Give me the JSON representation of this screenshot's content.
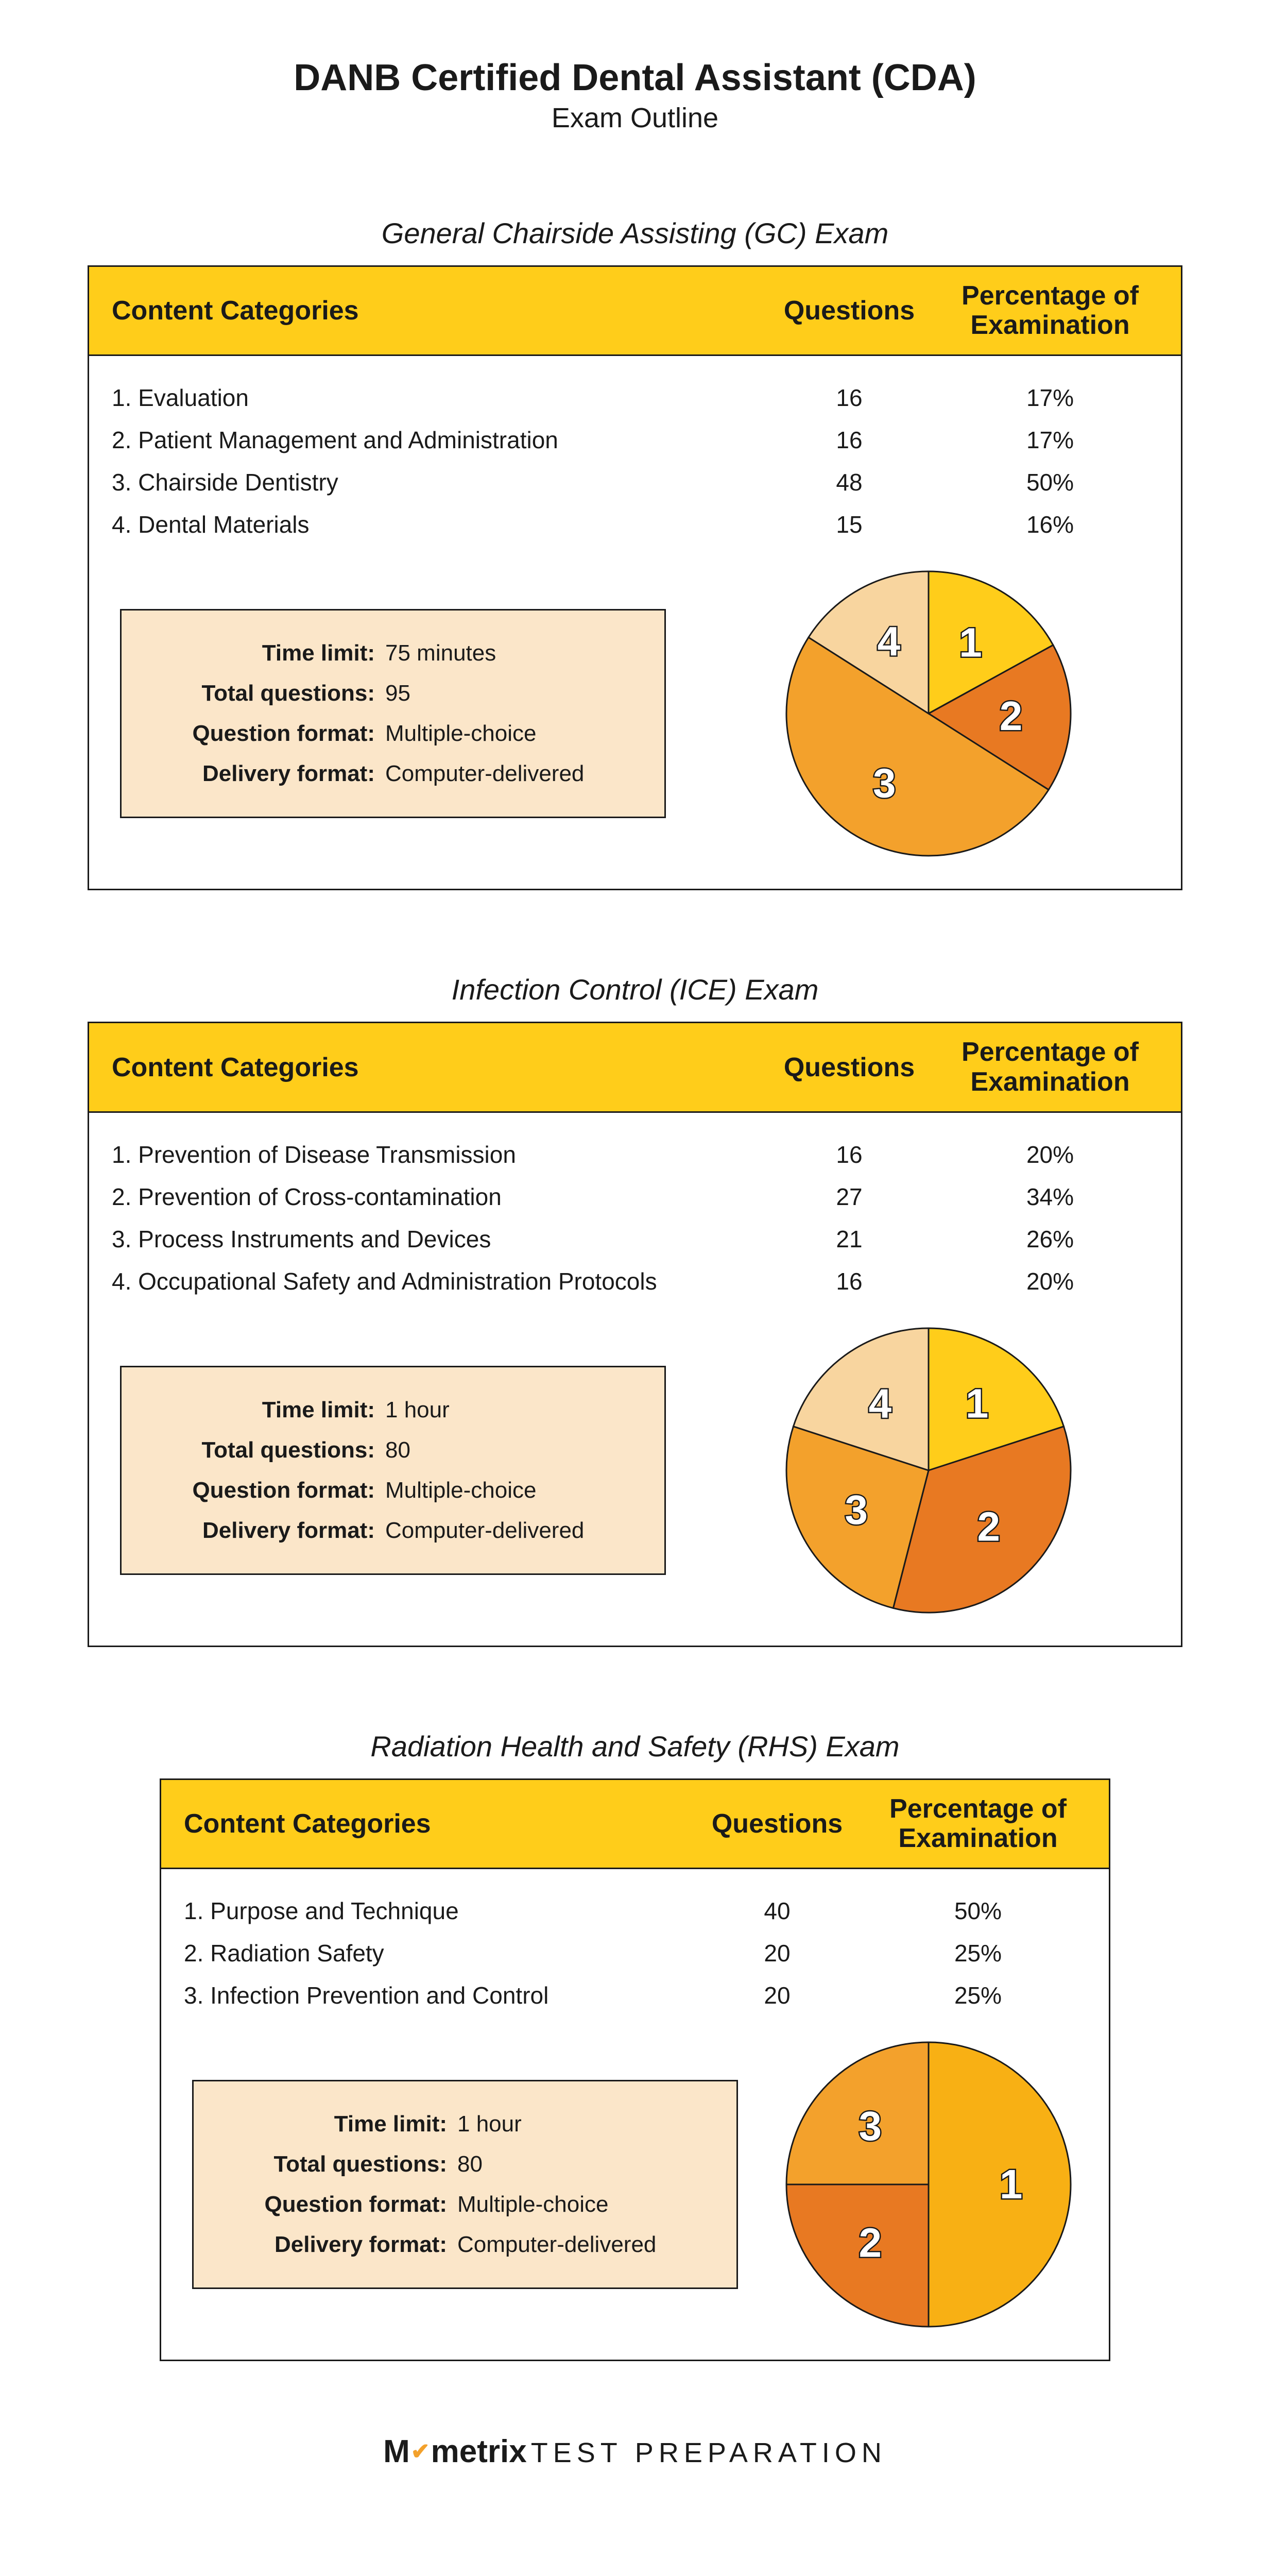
{
  "title": "DANB Certified Dental Assistant (CDA)",
  "subtitle": "Exam Outline",
  "columns": {
    "cat": "Content Categories",
    "q": "Questions",
    "pct": "Percentage of Examination"
  },
  "info_labels": {
    "time": "Time limit:",
    "total": "Total questions:",
    "qfmt": "Question format:",
    "dfmt": "Delivery format:"
  },
  "pie_stroke": "#1a1a1a",
  "header_bg": "#ffcd1a",
  "info_bg": "#fbe6c9",
  "sections": [
    {
      "title": "General Chairside Assisting (GC) Exam",
      "rows": [
        {
          "n": "1.",
          "name": "Evaluation",
          "q": "16",
          "pct": "17%"
        },
        {
          "n": "2.",
          "name": "Patient Management and Administration",
          "q": "16",
          "pct": "17%"
        },
        {
          "n": "3.",
          "name": "Chairside Dentistry",
          "q": "48",
          "pct": "50%"
        },
        {
          "n": "4.",
          "name": "Dental Materials",
          "q": "15",
          "pct": "16%"
        }
      ],
      "info": {
        "time": "75 minutes",
        "total": "95",
        "qfmt": "Multiple-choice",
        "dfmt": "Computer-delivered"
      },
      "pie": {
        "size": 560,
        "slices": [
          {
            "label": "1",
            "pct": 17,
            "color": "#ffcd1a"
          },
          {
            "label": "2",
            "pct": 17,
            "color": "#e87922"
          },
          {
            "label": "3",
            "pct": 50,
            "color": "#f3a12c"
          },
          {
            "label": "4",
            "pct": 16,
            "color": "#f8d59f"
          }
        ],
        "start_angle_deg": -90
      }
    },
    {
      "title": "Infection Control (ICE) Exam",
      "rows": [
        {
          "n": "1.",
          "name": "Prevention of Disease Transmission",
          "q": "16",
          "pct": "20%"
        },
        {
          "n": "2.",
          "name": "Prevention of Cross-contamination",
          "q": "27",
          "pct": "34%"
        },
        {
          "n": "3.",
          "name": "Process Instruments and Devices",
          "q": "21",
          "pct": "26%"
        },
        {
          "n": "4.",
          "name": "Occupational Safety and Administration Protocols",
          "q": "16",
          "pct": "20%"
        }
      ],
      "info": {
        "time": "1 hour",
        "total": "80",
        "qfmt": "Multiple-choice",
        "dfmt": "Computer-delivered"
      },
      "pie": {
        "size": 560,
        "slices": [
          {
            "label": "1",
            "pct": 20,
            "color": "#ffcd1a"
          },
          {
            "label": "2",
            "pct": 34,
            "color": "#e87922"
          },
          {
            "label": "3",
            "pct": 26,
            "color": "#f3a12c"
          },
          {
            "label": "4",
            "pct": 20,
            "color": "#f8d59f"
          }
        ],
        "start_angle_deg": -90
      }
    },
    {
      "title": "Radiation Health and Safety (RHS) Exam",
      "rows": [
        {
          "n": "1.",
          "name": "Purpose and Technique",
          "q": "40",
          "pct": "50%"
        },
        {
          "n": "2.",
          "name": "Radiation Safety",
          "q": "20",
          "pct": "25%"
        },
        {
          "n": "3.",
          "name": "Infection Prevention and Control",
          "q": "20",
          "pct": "25%"
        }
      ],
      "info": {
        "time": "1 hour",
        "total": "80",
        "qfmt": "Multiple-choice",
        "dfmt": "Computer-delivered"
      },
      "pie": {
        "size": 560,
        "slices": [
          {
            "label": "1",
            "pct": 50,
            "color": "#f8b014"
          },
          {
            "label": "2",
            "pct": 25,
            "color": "#e87922"
          },
          {
            "label": "3",
            "pct": 25,
            "color": "#f3a12c"
          }
        ],
        "start_angle_deg": -90
      },
      "narrow": true
    }
  ],
  "watermark": {
    "brand_pre": "M",
    "brand_mid_icon": "✔",
    "brand_rest": "metrix",
    "suffix": "TEST PREPARATION"
  },
  "watermark_icon_color": "#f3a12c"
}
